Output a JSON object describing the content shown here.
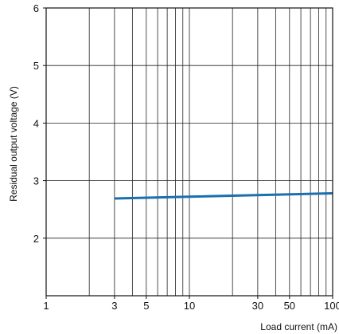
{
  "chart_data": {
    "type": "line",
    "xlabel": "Load current (mA)",
    "ylabel": "Residual output voltage (V)",
    "x_scale": "log",
    "xlim": [
      1,
      100
    ],
    "ylim": [
      1,
      6
    ],
    "grid": true,
    "x_ticks": [
      1,
      3,
      5,
      10,
      30,
      50,
      100
    ],
    "x_tick_labels": [
      "1",
      "3",
      "5",
      "10",
      "30",
      "50",
      "100"
    ],
    "y_ticks": [
      2,
      3,
      4,
      5,
      6
    ],
    "y_tick_labels": [
      "2",
      "3",
      "4",
      "5",
      "6"
    ],
    "series_color": "#1a6fb0",
    "series": [
      {
        "x": [
          3,
          10,
          100
        ],
        "y": [
          2.69,
          2.72,
          2.78
        ]
      }
    ]
  }
}
